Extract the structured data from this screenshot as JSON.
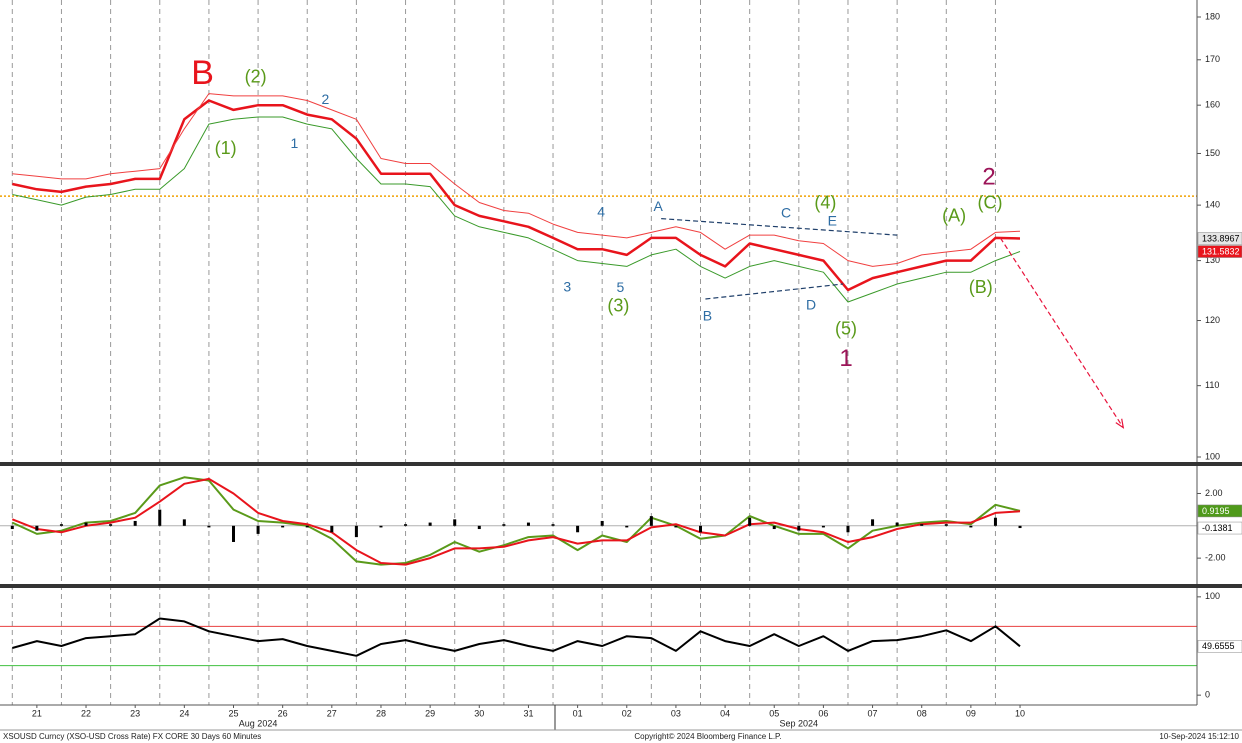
{
  "chart_data": [
    {
      "type": "line",
      "log": true,
      "xlim": [
        -0.75,
        23.6
      ],
      "xticks": [
        {
          "value": 0,
          "label": "21"
        },
        {
          "value": 1,
          "label": "22"
        },
        {
          "value": 2,
          "label": "23"
        },
        {
          "value": 3,
          "label": "24"
        },
        {
          "value": 4,
          "label": "25"
        },
        {
          "value": 5,
          "label": "26"
        },
        {
          "value": 6,
          "label": "27"
        },
        {
          "value": 7,
          "label": "28"
        },
        {
          "value": 8,
          "label": "29"
        },
        {
          "value": 9,
          "label": "30"
        },
        {
          "value": 10,
          "label": "31"
        },
        {
          "value": 11,
          "label": "01"
        },
        {
          "value": 12,
          "label": "02"
        },
        {
          "value": 13,
          "label": "03"
        },
        {
          "value": 14,
          "label": "04"
        },
        {
          "value": 15,
          "label": "05"
        },
        {
          "value": 16,
          "label": "06"
        },
        {
          "value": 17,
          "label": "07"
        },
        {
          "value": 18,
          "label": "08"
        },
        {
          "value": 19,
          "label": "09"
        },
        {
          "value": 20,
          "label": "10"
        }
      ],
      "xmonths": [
        {
          "value": 4.5,
          "label": "Aug 2024"
        },
        {
          "value": 15.5,
          "label": "Sep 2024"
        }
      ],
      "xgrid": [
        -0.5,
        0.5,
        1.5,
        2.5,
        3.5,
        4.5,
        5.5,
        6.5,
        7.5,
        8.5,
        9.5,
        10.5,
        11.5,
        12.5,
        13.5,
        14.5,
        15.5,
        16.5,
        17.5,
        18.5,
        19.5
      ],
      "ylim": [
        100,
        180
      ],
      "yticks": [
        100,
        110,
        120,
        130,
        140,
        150,
        160,
        170,
        180
      ],
      "x": [
        -0.5,
        0,
        0.5,
        1,
        1.5,
        2,
        2.5,
        3,
        3.5,
        4,
        4.5,
        5,
        5.5,
        6,
        6.5,
        7,
        7.5,
        8,
        8.5,
        9,
        9.5,
        10,
        10.5,
        11,
        11.5,
        12,
        12.5,
        13,
        13.5,
        14,
        14.5,
        15,
        15.5,
        16,
        16.5,
        17,
        17.5,
        18,
        18.5,
        19,
        19.5,
        20
      ],
      "series": [
        {
          "color": "#e8141c",
          "values": [
            144,
            143,
            142.5,
            143.5,
            144,
            145,
            145,
            157,
            161,
            159,
            160,
            160,
            158,
            157,
            153,
            146,
            146,
            146,
            140,
            138,
            137,
            136,
            134,
            132,
            132,
            131,
            134,
            134,
            131,
            129,
            133,
            132,
            131,
            130,
            125,
            127,
            128,
            129,
            130,
            130,
            134,
            133.8967
          ]
        },
        {
          "color": "#f04040",
          "values": [
            146,
            145.5,
            145,
            145,
            146,
            146.5,
            147,
            155,
            162.5,
            162,
            162,
            162,
            161,
            159,
            157,
            149,
            148,
            148,
            144,
            140.5,
            139,
            138.5,
            136.5,
            135,
            134.5,
            134,
            135,
            136,
            135,
            132,
            134.5,
            134.5,
            133.5,
            133,
            130,
            129,
            129.5,
            131,
            131.5,
            132,
            135,
            135.2
          ]
        },
        {
          "color": "#3a9a2a",
          "values": [
            142,
            141,
            140,
            141.5,
            142,
            143,
            143,
            147,
            156,
            157,
            157.5,
            157.5,
            156,
            155,
            149,
            144,
            144,
            143.5,
            138,
            136,
            135,
            134,
            132,
            130,
            129.5,
            129,
            131,
            132,
            129,
            127,
            129,
            130,
            129,
            128,
            123,
            124.5,
            126,
            127,
            128,
            128,
            130,
            131.5832
          ]
        }
      ],
      "hlines": [
        {
          "value": 141.7,
          "color": "#f0a000",
          "style": "dotted"
        }
      ],
      "trendlines": [
        {
          "x": [
            12.7,
            17.5
          ],
          "y": [
            137.5,
            134.5
          ],
          "color": "#1f3f6a",
          "style": "dashed"
        },
        {
          "x": [
            13.6,
            16.4
          ],
          "y": [
            123.5,
            126
          ],
          "color": "#1f3f6a",
          "style": "dashed"
        },
        {
          "x": [
            19.6,
            22.1
          ],
          "y": [
            134,
            104
          ],
          "color": "#e8143c",
          "style": "dashed",
          "arrow": true
        }
      ],
      "annotations": [
        {
          "text": "B",
          "color": "#e8141c",
          "x": 3.37,
          "y": 166.6
        },
        {
          "text": "(2)",
          "color": "#5a9a1a",
          "x": 4.45,
          "y": 166
        },
        {
          "text": "(1)",
          "color": "#5a9a1a",
          "x": 3.84,
          "y": 150.8
        },
        {
          "text": "1",
          "color": "#2e6da4",
          "x": 5.24,
          "y": 151.9
        },
        {
          "text": "2",
          "color": "#2e6da4",
          "x": 5.87,
          "y": 161
        },
        {
          "text": "4",
          "color": "#2e6da4",
          "x": 11.48,
          "y": 138.6
        },
        {
          "text": "A",
          "color": "#2e6da4",
          "x": 12.64,
          "y": 139.6
        },
        {
          "text": "C",
          "color": "#2e6da4",
          "x": 15.24,
          "y": 138.4
        },
        {
          "text": "(4)",
          "color": "#5a9a1a",
          "x": 16.04,
          "y": 140.3
        },
        {
          "text": "E",
          "color": "#2e6da4",
          "x": 16.18,
          "y": 136.9
        },
        {
          "text": "(A)",
          "color": "#5a9a1a",
          "x": 18.66,
          "y": 137.8
        },
        {
          "text": "2",
          "color": "#9c1458",
          "x": 19.37,
          "y": 145.1
        },
        {
          "text": "(C)",
          "color": "#5a9a1a",
          "x": 19.39,
          "y": 140.3
        },
        {
          "text": "3",
          "color": "#2e6da4",
          "x": 10.79,
          "y": 125.4
        },
        {
          "text": "5",
          "color": "#2e6da4",
          "x": 11.87,
          "y": 125.3
        },
        {
          "text": "(3)",
          "color": "#5a9a1a",
          "x": 11.83,
          "y": 122.2
        },
        {
          "text": "B",
          "color": "#2e6da4",
          "x": 13.64,
          "y": 120.6
        },
        {
          "text": "D",
          "color": "#2e6da4",
          "x": 15.75,
          "y": 122.4
        },
        {
          "text": "(5)",
          "color": "#5a9a1a",
          "x": 16.46,
          "y": 118.5
        },
        {
          "text": "1",
          "color": "#9c1458",
          "x": 16.46,
          "y": 113.9
        },
        {
          "text": "(B)",
          "color": "#5a9a1a",
          "x": 19.2,
          "y": 125.3
        }
      ],
      "tags": [
        {
          "value": 133.8967,
          "color": "#e6e6e6",
          "text_color": "#000000"
        },
        {
          "value": 131.5832,
          "color": "#e8141c",
          "text_color": "#ffffff"
        }
      ]
    },
    {
      "type": "line",
      "ylim": [
        -3.6,
        3.7
      ],
      "yticks": [
        {
          "value": 2,
          "label": "2.00"
        },
        {
          "value": -2,
          "label": "-2.00"
        }
      ],
      "x": [
        -0.5,
        0,
        0.5,
        1,
        1.5,
        2,
        2.5,
        3,
        3.5,
        4,
        4.5,
        5,
        5.5,
        6,
        6.5,
        7,
        7.5,
        8,
        8.5,
        9,
        9.5,
        10,
        10.5,
        11,
        11.5,
        12,
        12.5,
        13,
        13.5,
        14,
        14.5,
        15,
        15.5,
        16,
        16.5,
        17,
        17.5,
        18,
        18.5,
        19,
        19.5,
        20
      ],
      "series": [
        {
          "color": "#5a9a1a",
          "values": [
            0.2,
            -0.5,
            -0.3,
            0.2,
            0.3,
            0.8,
            2.5,
            3.0,
            2.8,
            1.0,
            0.3,
            0.2,
            0.0,
            -0.8,
            -2.2,
            -2.4,
            -2.3,
            -1.8,
            -1.0,
            -1.6,
            -1.2,
            -0.7,
            -0.6,
            -1.5,
            -0.6,
            -1.0,
            0.5,
            0.0,
            -0.8,
            -0.6,
            0.6,
            0.0,
            -0.5,
            -0.5,
            -1.4,
            -0.3,
            0.0,
            0.2,
            0.3,
            0.1,
            1.3,
            0.9195
          ]
        },
        {
          "color": "#e8141c",
          "values": [
            0.4,
            -0.2,
            -0.4,
            0.0,
            0.2,
            0.5,
            1.5,
            2.6,
            2.9,
            2.0,
            0.8,
            0.3,
            0.1,
            -0.4,
            -1.5,
            -2.3,
            -2.4,
            -2.0,
            -1.4,
            -1.4,
            -1.3,
            -0.9,
            -0.7,
            -1.1,
            -0.9,
            -0.9,
            -0.1,
            0.1,
            -0.4,
            -0.6,
            0.1,
            0.2,
            -0.2,
            -0.4,
            -1.0,
            -0.7,
            -0.2,
            0.1,
            0.2,
            0.2,
            0.8,
            0.9
          ]
        },
        {
          "color": "#000000",
          "kind": "bar",
          "values": [
            -0.2,
            -0.3,
            0.1,
            0.2,
            0.1,
            0.3,
            1.0,
            0.4,
            -0.1,
            -1.0,
            -0.5,
            -0.1,
            -0.1,
            -0.4,
            -0.7,
            -0.1,
            0.1,
            0.2,
            0.4,
            -0.2,
            0.1,
            0.2,
            0.1,
            -0.4,
            0.3,
            -0.1,
            0.6,
            -0.1,
            -0.4,
            0.0,
            0.5,
            -0.2,
            -0.3,
            -0.1,
            -0.4,
            0.4,
            0.2,
            0.1,
            0.1,
            -0.1,
            0.5,
            -0.1381
          ]
        }
      ],
      "hlines": [
        {
          "value": 0,
          "color": "#b0b0b0",
          "style": "solid"
        }
      ],
      "tags": [
        {
          "value": 0.9195,
          "color": "#4f9a1a",
          "text_color": "#ffffff"
        },
        {
          "value": -0.1381,
          "color": "#ffffff",
          "text_color": "#000000"
        }
      ]
    },
    {
      "type": "line",
      "ylim": [
        -9,
        109
      ],
      "yticks": [
        0,
        100
      ],
      "x": [
        -0.5,
        0,
        0.5,
        1,
        1.5,
        2,
        2.5,
        3,
        3.5,
        4,
        4.5,
        5,
        5.5,
        6,
        6.5,
        7,
        7.5,
        8,
        8.5,
        9,
        9.5,
        10,
        10.5,
        11,
        11.5,
        12,
        12.5,
        13,
        13.5,
        14,
        14.5,
        15,
        15.5,
        16,
        16.5,
        17,
        17.5,
        18,
        18.5,
        19,
        19.5,
        20
      ],
      "series": [
        {
          "color": "#000000",
          "values": [
            48,
            55,
            50,
            58,
            60,
            62,
            78,
            75,
            65,
            60,
            55,
            57,
            50,
            45,
            40,
            52,
            56,
            50,
            45,
            52,
            56,
            50,
            45,
            55,
            50,
            60,
            58,
            45,
            65,
            55,
            50,
            62,
            50,
            60,
            45,
            55,
            56,
            60,
            66,
            55,
            70,
            49.6555
          ]
        }
      ],
      "hlines": [
        {
          "value": 70,
          "color": "#e84040",
          "style": "solid"
        },
        {
          "value": 30,
          "color": "#40c040",
          "style": "solid"
        }
      ],
      "tags": [
        {
          "value": 49.6555,
          "color": "#ffffff",
          "text_color": "#000000"
        }
      ]
    }
  ],
  "footer": {
    "left": "XSOUSD Curncy (XSO-USD Cross Rate) FX CORE 30 Days 60 Minutes",
    "center": "Copyright© 2024 Bloomberg Finance L.P.",
    "right": "10-Sep-2024 15:12:10"
  }
}
